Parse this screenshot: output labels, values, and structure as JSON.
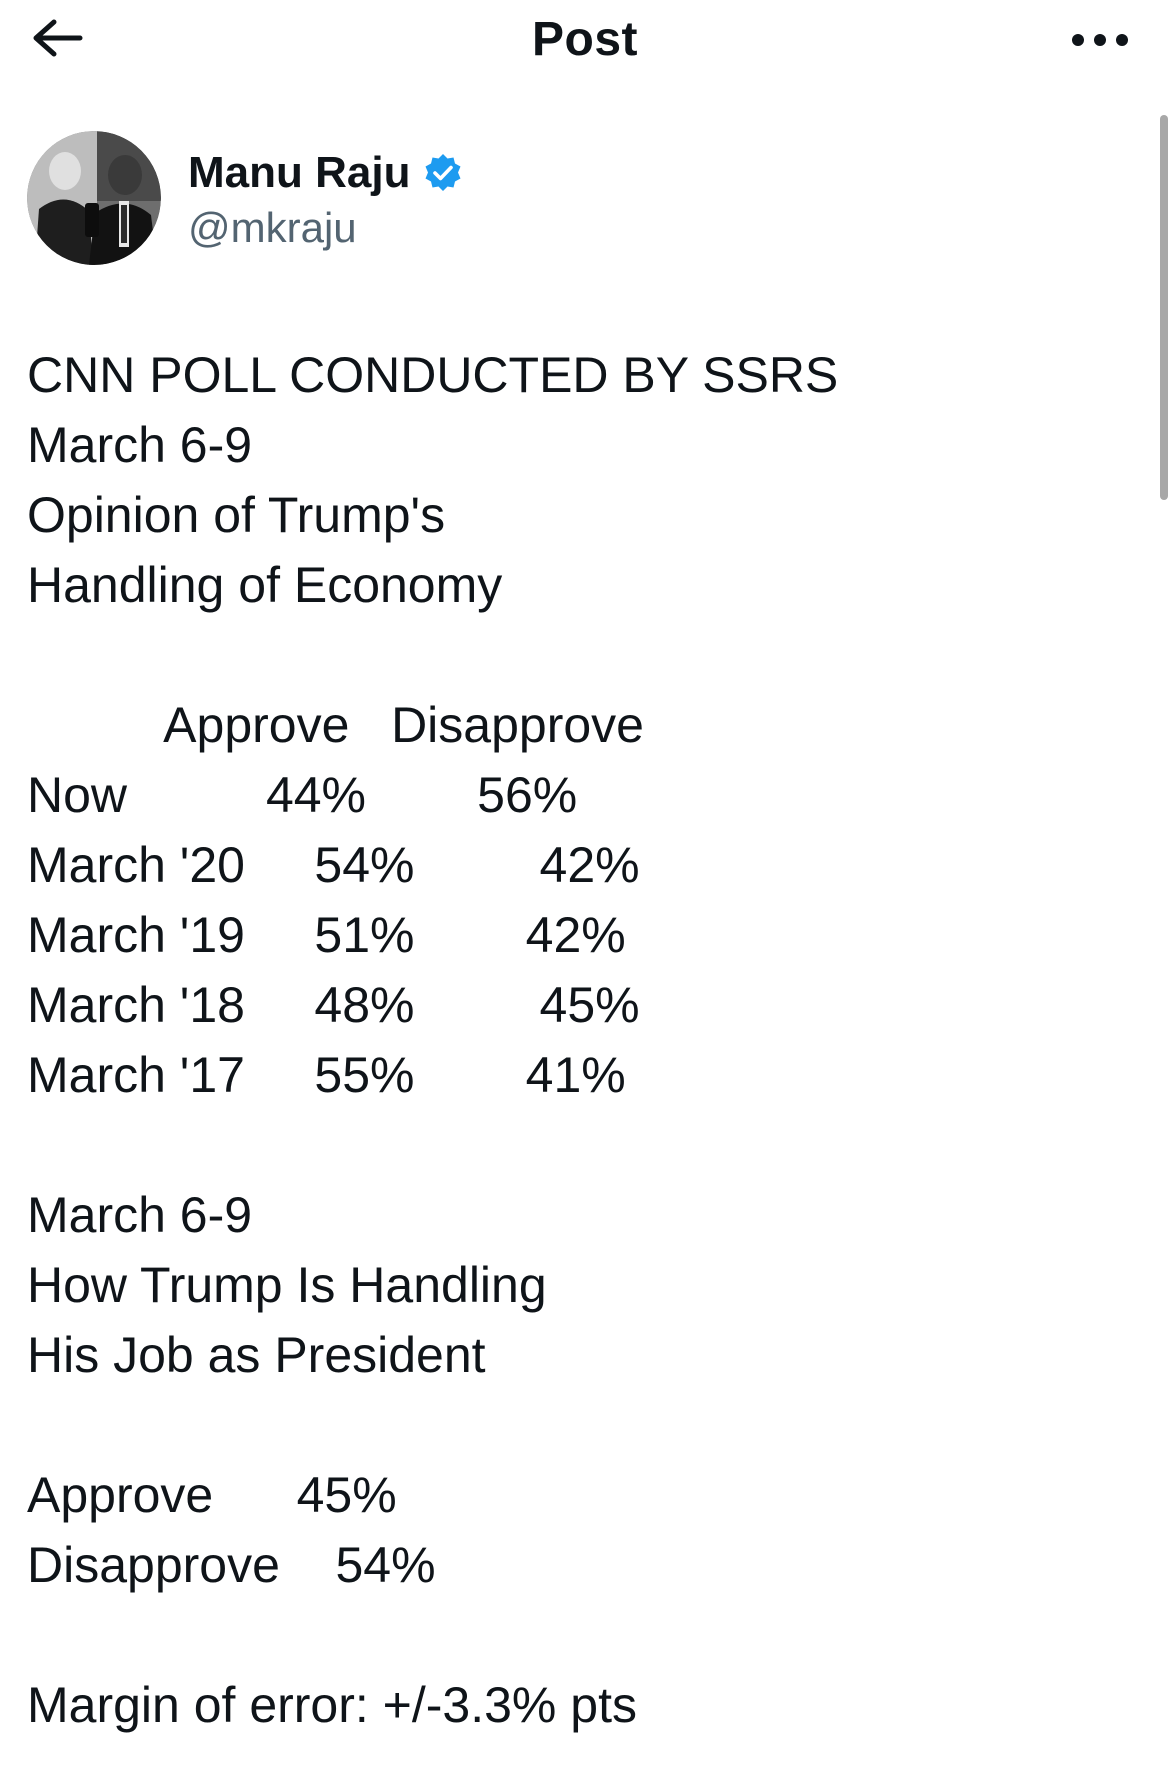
{
  "header": {
    "title": "Post"
  },
  "icons": {
    "back": "back-arrow-icon",
    "more": "more-horizontal-icon",
    "verified": "verified-badge-icon"
  },
  "colors": {
    "verified": "#1d9bf0",
    "handle": "#536471",
    "text": "#0f1419"
  },
  "author": {
    "display_name": "Manu Raju",
    "handle": "@mkraju"
  },
  "post": {
    "text": "CNN POLL CONDUCTED BY SSRS\nMarch 6-9\nOpinion of Trump's\nHandling of Economy\n\n          Approve   Disapprove\nNow          44%        56%\nMarch '20     54%         42%\nMarch '19     51%        42%\nMarch '18     48%         45%\nMarch '17     55%        41%\n\nMarch 6-9\nHow Trump Is Handling\nHis Job as President\n\nApprove      45%\nDisapprove    54%\n\nMargin of error: +/-3.3% pts"
  }
}
